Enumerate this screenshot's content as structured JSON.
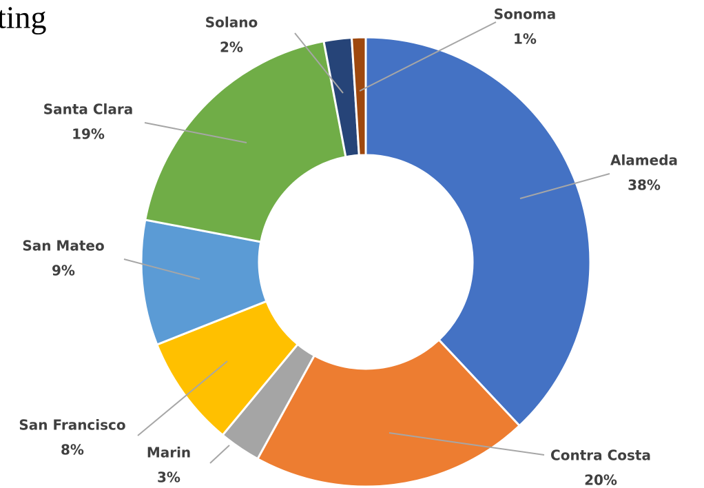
{
  "chart_data": {
    "type": "donut",
    "title": "ting",
    "categories": [
      "Alameda",
      "Contra Costa",
      "Marin",
      "San Francisco",
      "San Mateo",
      "Santa Clara",
      "Solano",
      "Sonoma"
    ],
    "values": [
      38,
      20,
      3,
      8,
      9,
      19,
      2,
      1
    ],
    "value_labels": [
      "38%",
      "20%",
      "3%",
      "8%",
      "9%",
      "19%",
      "2%",
      "1%"
    ],
    "colors": [
      "#4472c4",
      "#ed7d31",
      "#a5a5a5",
      "#ffc000",
      "#5b9bd5",
      "#70ad47",
      "#264478",
      "#9e480e"
    ]
  }
}
